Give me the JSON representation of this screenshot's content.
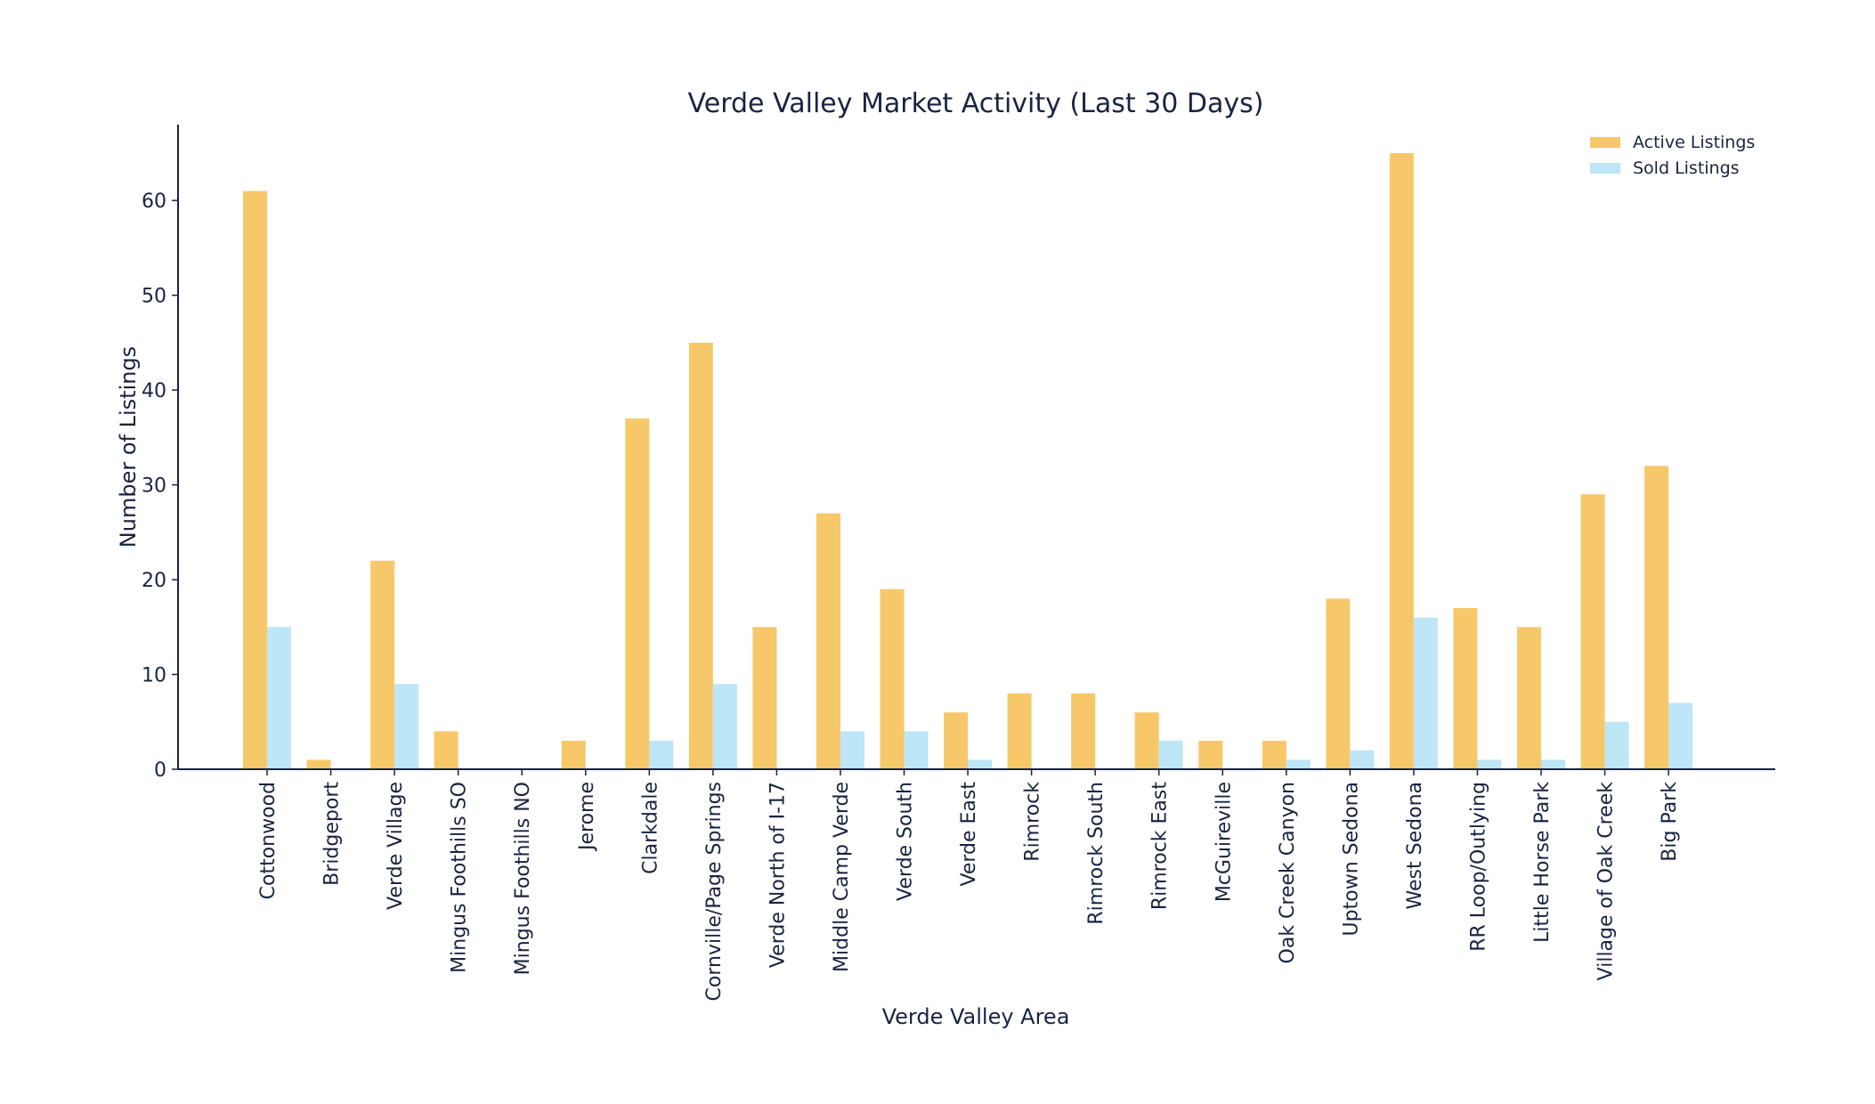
{
  "chart_data": {
    "type": "bar",
    "title": "Verde Valley Market Activity (Last 30 Days)",
    "xlabel": "Verde Valley Area",
    "ylabel": "Number of Listings",
    "ylim": [
      0,
      68
    ],
    "yticks": [
      0,
      10,
      20,
      30,
      40,
      50,
      60
    ],
    "grid": false,
    "legend_position": "top-right",
    "categories": [
      "Cottonwood",
      "Bridgeport",
      "Verde Village",
      "Mingus Foothills SO",
      "Mingus Foothills NO",
      "Jerome",
      "Clarkdale",
      "Cornville/Page Springs",
      "Verde North of I-17",
      "Middle Camp Verde",
      "Verde South",
      "Verde East",
      "Rimrock",
      "Rimrock South",
      "Rimrock East",
      "McGuireville",
      "Oak Creek Canyon",
      "Uptown Sedona",
      "West Sedona",
      "RR Loop/Outlying",
      "Little Horse Park",
      "Village of Oak Creek",
      "Big Park"
    ],
    "series": [
      {
        "name": "Active Listings",
        "color": "#f7c86a",
        "values": [
          61,
          1,
          22,
          4,
          0,
          3,
          37,
          45,
          15,
          27,
          19,
          6,
          8,
          8,
          6,
          3,
          3,
          18,
          65,
          17,
          15,
          29,
          32
        ]
      },
      {
        "name": "Sold Listings",
        "color": "#bde6f7",
        "values": [
          15,
          0,
          9,
          0,
          0,
          0,
          3,
          9,
          0,
          4,
          4,
          1,
          0,
          0,
          3,
          0,
          1,
          2,
          16,
          1,
          1,
          5,
          7
        ]
      }
    ]
  },
  "colors": {
    "axis": "#1a2340",
    "text": "#1a2340",
    "background": "#ffffff"
  }
}
